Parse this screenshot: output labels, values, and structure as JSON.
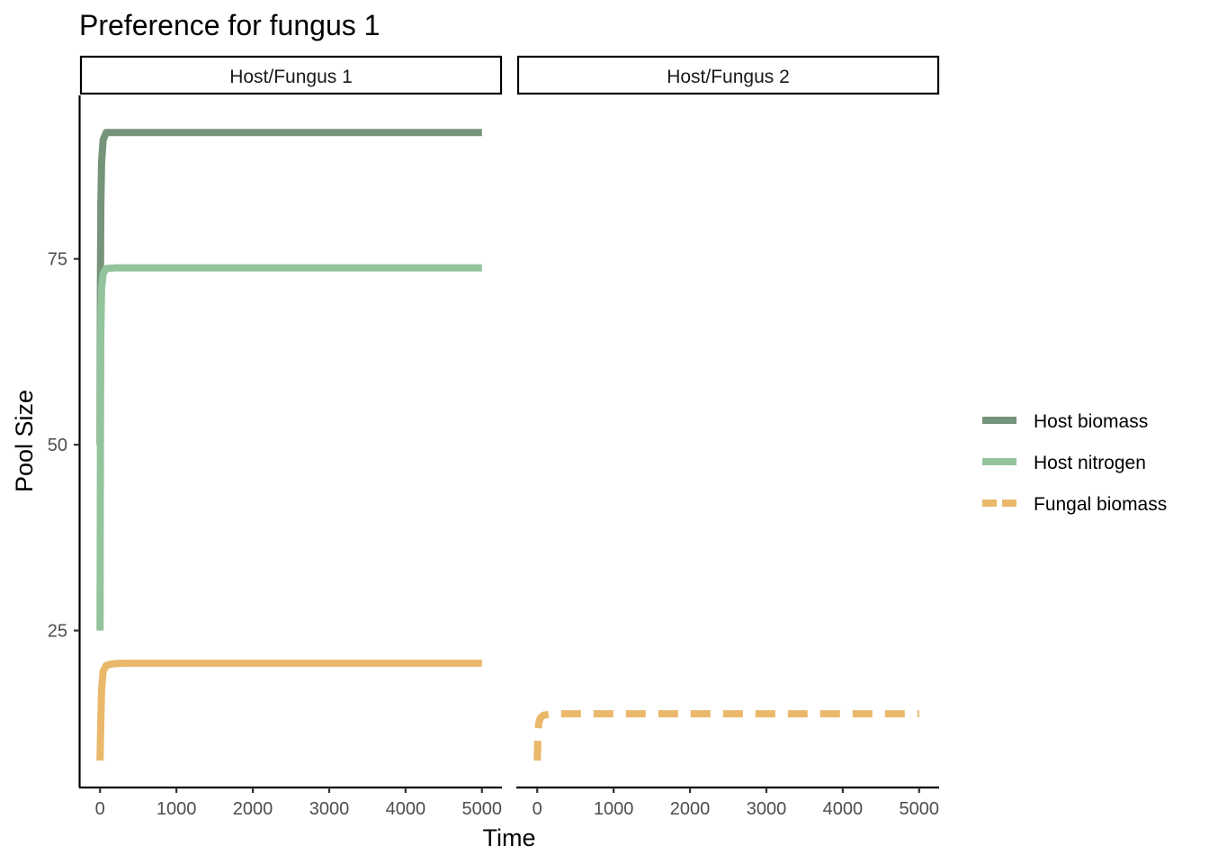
{
  "chart_data": {
    "type": "line",
    "title": "Preference for fungus 1",
    "xlabel": "Time",
    "ylabel": "Pool Size",
    "xlim": [
      -250,
      5250
    ],
    "ylim": [
      4,
      97
    ],
    "x_ticks": [
      0,
      1000,
      2000,
      3000,
      4000,
      5000
    ],
    "y_ticks": [
      25,
      50,
      75
    ],
    "grid": false,
    "legend_position": "right",
    "facets": [
      {
        "label": "Host/Fungus 1",
        "series": [
          {
            "name": "Host biomass",
            "color": "#76947a",
            "dash": "solid",
            "points": [
              [
                0,
                50
              ],
              [
                5,
                72
              ],
              [
                10,
                82
              ],
              [
                20,
                88
              ],
              [
                40,
                91
              ],
              [
                80,
                92
              ],
              [
                200,
                92
              ],
              [
                1000,
                92
              ],
              [
                5000,
                92
              ]
            ]
          },
          {
            "name": "Host nitrogen",
            "color": "#94c49e",
            "dash": "solid",
            "points": [
              [
                0,
                25
              ],
              [
                5,
                50
              ],
              [
                10,
                65
              ],
              [
                20,
                71
              ],
              [
                40,
                73
              ],
              [
                80,
                73.7
              ],
              [
                200,
                73.8
              ],
              [
                1000,
                73.8
              ],
              [
                5000,
                73.8
              ]
            ]
          },
          {
            "name": "Fungal biomass",
            "color": "#eab86a",
            "dash": "solid",
            "points": [
              [
                0,
                7.5
              ],
              [
                10,
                13
              ],
              [
                20,
                17
              ],
              [
                40,
                19.5
              ],
              [
                80,
                20.3
              ],
              [
                150,
                20.5
              ],
              [
                300,
                20.6
              ],
              [
                1000,
                20.6
              ],
              [
                5000,
                20.6
              ]
            ]
          }
        ]
      },
      {
        "label": "Host/Fungus 2",
        "series": [
          {
            "name": "Fungal biomass",
            "color": "#eab86a",
            "dash": "dashed",
            "points": [
              [
                0,
                7.5
              ],
              [
                10,
                11
              ],
              [
                20,
                12.5
              ],
              [
                40,
                13.2
              ],
              [
                80,
                13.6
              ],
              [
                200,
                13.8
              ],
              [
                1000,
                13.8
              ],
              [
                5000,
                13.8
              ]
            ]
          }
        ]
      }
    ],
    "legend": [
      {
        "name": "Host biomass",
        "color": "#76947a",
        "dash": "solid"
      },
      {
        "name": "Host nitrogen",
        "color": "#94c49e",
        "dash": "solid"
      },
      {
        "name": "Fungal biomass",
        "color": "#eab86a",
        "dash": "dashed"
      }
    ]
  }
}
